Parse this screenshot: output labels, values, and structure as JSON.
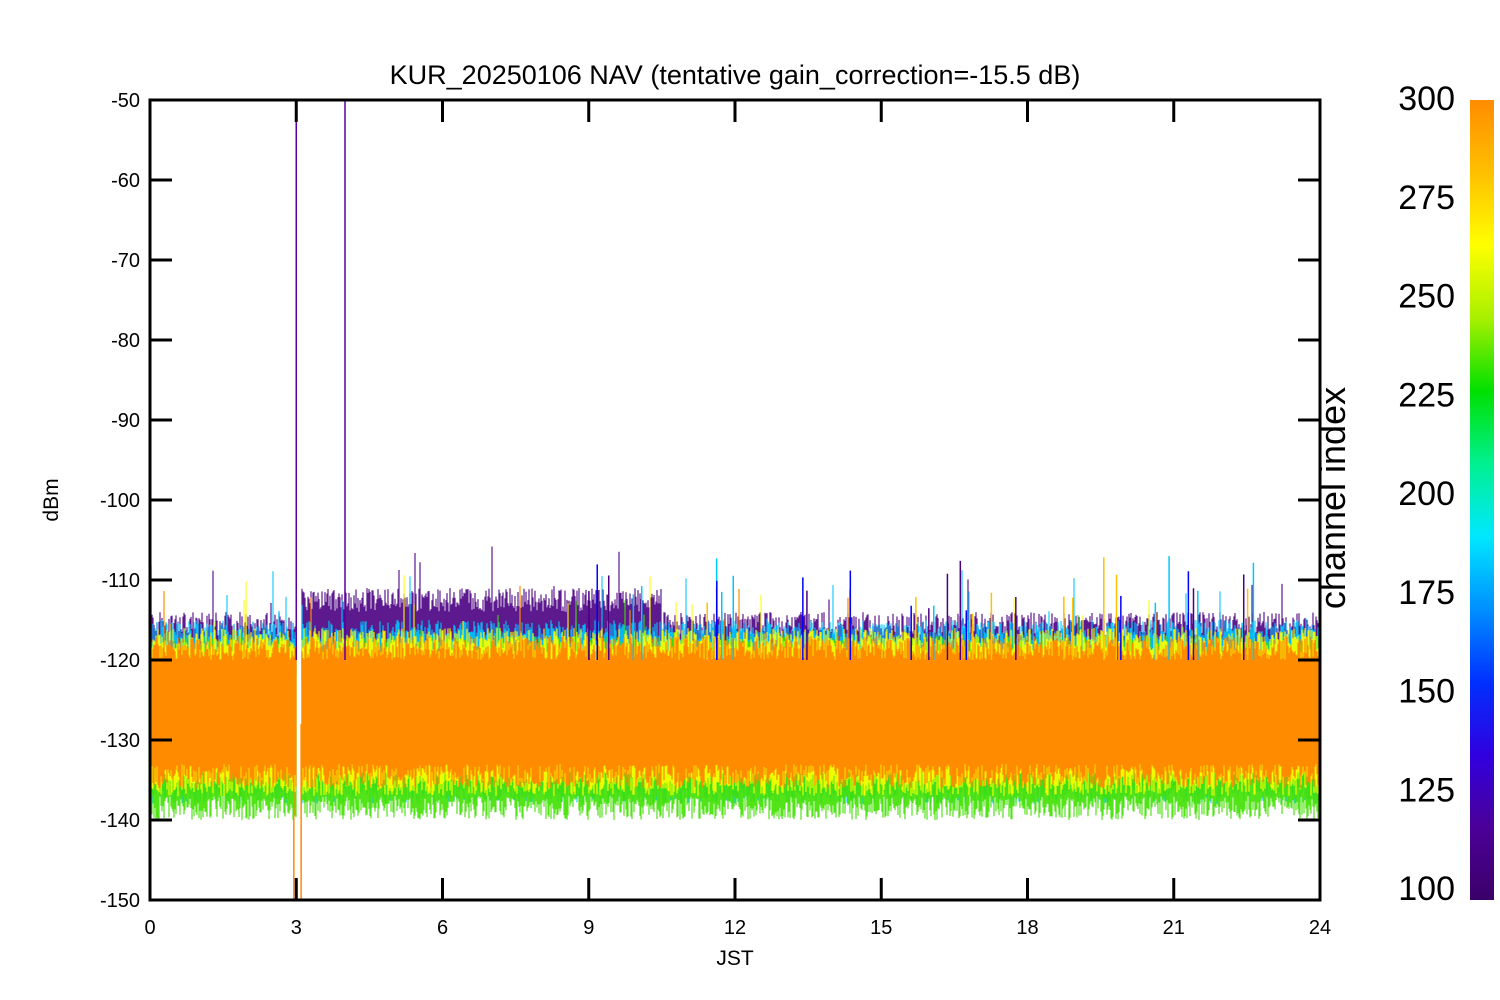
{
  "chart_data": {
    "type": "line",
    "title": "KUR_20250106 NAV (tentative gain_correction=-15.5 dB)",
    "xlabel": "JST",
    "ylabel": "dBm",
    "xlim": [
      0,
      24
    ],
    "ylim": [
      -150,
      -50
    ],
    "xticks": [
      0,
      3,
      6,
      9,
      12,
      15,
      18,
      21,
      24
    ],
    "yticks": [
      -50,
      -60,
      -70,
      -80,
      -90,
      -100,
      -110,
      -120,
      -130,
      -140,
      -150
    ],
    "grid": false,
    "colorbar": {
      "label": "channel index",
      "range": [
        100,
        300
      ],
      "ticks": [
        300,
        275,
        250,
        225,
        200,
        175,
        150,
        125,
        100
      ],
      "colormap": [
        "#3b0068",
        "#4b0098",
        "#3000e0",
        "#0030ff",
        "#0090ff",
        "#00e8ff",
        "#00f090",
        "#00e000",
        "#a8f000",
        "#ffff00",
        "#ffc000",
        "#ff8c00"
      ]
    },
    "series": [
      {
        "color": "#4b0082",
        "band_upper": -116,
        "band_lower": -124,
        "description_level": "channel ~100-120"
      },
      {
        "color": "#00c8ff",
        "band_upper": -118,
        "band_lower": -135,
        "description_level": "channel ~175"
      },
      {
        "color": "#40e000",
        "band_upper": -120,
        "band_lower": -137,
        "description_level": "channel ~225-250"
      },
      {
        "color": "#ffff00",
        "band_upper": -119,
        "band_lower": -134,
        "description_level": "channel ~275"
      },
      {
        "color": "#ff8c00",
        "band_upper": -120,
        "band_lower": -133,
        "description_level": "channel ~300"
      }
    ],
    "annotations": {
      "purple_spikes_x": [
        3.0,
        4.0
      ],
      "purple_spike_top": -50,
      "orange_spike_x": 3.05,
      "orange_spike_bottom": -150,
      "data_gap_x": [
        3.0,
        3.1
      ]
    }
  }
}
